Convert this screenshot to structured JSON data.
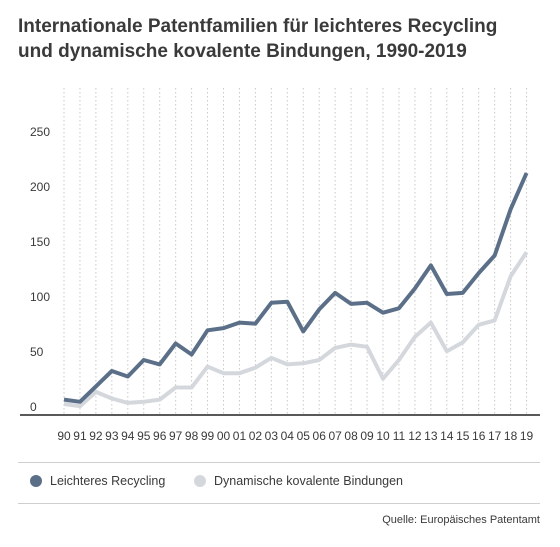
{
  "chart_data": {
    "type": "line",
    "title_lines": [
      "Internationale Patentfamilien für leichteres Recycling",
      "und dynamische kovalente Bindungen, 1990-2019"
    ],
    "x": [
      "90",
      "91",
      "92",
      "93",
      "94",
      "95",
      "96",
      "97",
      "98",
      "99",
      "00",
      "01",
      "02",
      "03",
      "04",
      "05",
      "06",
      "07",
      "08",
      "09",
      "10",
      "11",
      "12",
      "13",
      "14",
      "15",
      "16",
      "17",
      "18",
      "19"
    ],
    "ylim": [
      0,
      290
    ],
    "yticks": [
      0,
      50,
      100,
      150,
      200,
      250
    ],
    "grid": "vertical-dotted",
    "legend_position": "bottom",
    "series": [
      {
        "name": "Leichteres Recycling",
        "color": "#5b7088",
        "values": [
          14,
          12,
          26,
          40,
          35,
          50,
          46,
          65,
          55,
          77,
          79,
          84,
          83,
          102,
          103,
          76,
          96,
          111,
          101,
          102,
          93,
          97,
          115,
          136,
          110,
          111,
          129,
          145,
          187,
          220
        ]
      },
      {
        "name": "Dynamische kovalente Bindungen",
        "color": "#d4d8dd",
        "values": [
          10,
          8,
          21,
          15,
          11,
          12,
          14,
          25,
          25,
          44,
          38,
          38,
          43,
          52,
          46,
          47,
          50,
          61,
          64,
          62,
          33,
          50,
          71,
          84,
          58,
          66,
          82,
          86,
          126,
          148
        ]
      }
    ]
  },
  "source": "Quelle: Europäisches Patentamt"
}
